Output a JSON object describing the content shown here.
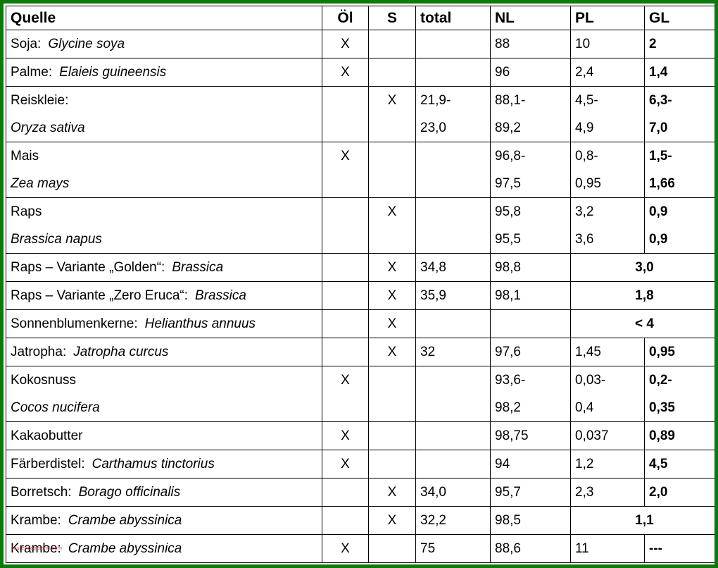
{
  "headers": {
    "source": "Quelle",
    "oil": "Öl",
    "s": "S",
    "total": "total",
    "nl": "NL",
    "pl": "PL",
    "gl": "GL"
  },
  "rows": [
    {
      "name": "Soja:",
      "latin": "Glycine soya",
      "oil": "X",
      "s": "",
      "total": "",
      "nl": "88",
      "pl": "10",
      "gl": "2"
    },
    {
      "name": "Palme:",
      "latin": "Elaieis guineensis",
      "oil": "X",
      "s": "",
      "total": "",
      "nl": "96",
      "pl": "2,4",
      "gl": "1,4"
    },
    {
      "name": "Reiskleie:",
      "latin": "Oryza sativa",
      "oil": "",
      "s": "X",
      "total": "21,9-",
      "total2": "23,0",
      "nl": "88,1-",
      "nl2": "89,2",
      "pl": "4,5-",
      "pl2": "4,9",
      "gl": "6,3-",
      "gl2": "7,0"
    },
    {
      "name": "Mais",
      "latin": "Zea mays",
      "oil": "X",
      "s": "",
      "total": "",
      "total2": "",
      "nl": "96,8-",
      "nl2": "97,5",
      "pl": "0,8-",
      "pl2": "0,95",
      "gl": "1,5-",
      "gl2": "1,66"
    },
    {
      "name": "Raps",
      "latin": "Brassica napus",
      "oil": "",
      "s": "X",
      "total": "",
      "total2": "",
      "nl": "95,8",
      "nl2": "95,5",
      "pl": "3,2",
      "pl2": "3,6",
      "gl": "0,9",
      "gl2": "0,9"
    },
    {
      "name": "Raps – Variante „Golden“:",
      "latin": "Brassica",
      "oil": "",
      "s": "X",
      "total": "34,8",
      "nl": "98,8",
      "plgl": "3,0"
    },
    {
      "name": "Raps –  Variante „Zero Eruca“:",
      "latin": "Brassica",
      "oil": "",
      "s": "X",
      "total": "35,9",
      "nl": "98,1",
      "plgl": "1,8"
    },
    {
      "name": "Sonnenblumenkerne:",
      "latin": "Helianthus annuus",
      "oil": "",
      "s": "X",
      "total": "",
      "nl": "",
      "plgl": "< 4"
    },
    {
      "name": "Jatropha:",
      "latin": "Jatropha curcus",
      "oil": "",
      "s": "X",
      "total": "32",
      "nl": "97,6",
      "pl": "1,45",
      "gl": "0,95"
    },
    {
      "name": "Kokosnuss",
      "latin": "Cocos nucifera",
      "oil": "X",
      "s": "",
      "total": "",
      "total2": "",
      "nl": "93,6-",
      "nl2": "98,2",
      "pl": "0,03-",
      "pl2": "0,4",
      "gl": "0,2-",
      "gl2": "0,35"
    },
    {
      "name": "Kakaobutter",
      "oil": "X",
      "s": "",
      "total": "",
      "nl": "98,75",
      "pl": "0,037",
      "gl": "0,89"
    },
    {
      "name": "Färberdistel:",
      "latin": "Carthamus tinctorius",
      "oil": "X",
      "s": "",
      "total": "",
      "nl": "94",
      "pl": "1,2",
      "gl": "4,5"
    },
    {
      "name": "Borretsch:",
      "latin": "Borago officinalis",
      "oil": "",
      "s": "X",
      "total": "34,0",
      "nl": "95,7",
      "pl": "2,3",
      "gl": "2,0"
    },
    {
      "name": "Krambe:",
      "latin": "Crambe abyssinica",
      "oil": "",
      "s": "X",
      "total": "32,2",
      "nl": "98,5",
      "plgl": "1,1"
    },
    {
      "name": "Krambe:",
      "latin": "Crambe abyssinica",
      "oil": "X",
      "s": "",
      "total": "75",
      "nl": "88,6",
      "pl": "11",
      "gl": "---"
    }
  ],
  "watermark": "laurencepeland.com",
  "colors": {
    "frame": "#0b7a0b",
    "watermark": "#e05a6a"
  }
}
